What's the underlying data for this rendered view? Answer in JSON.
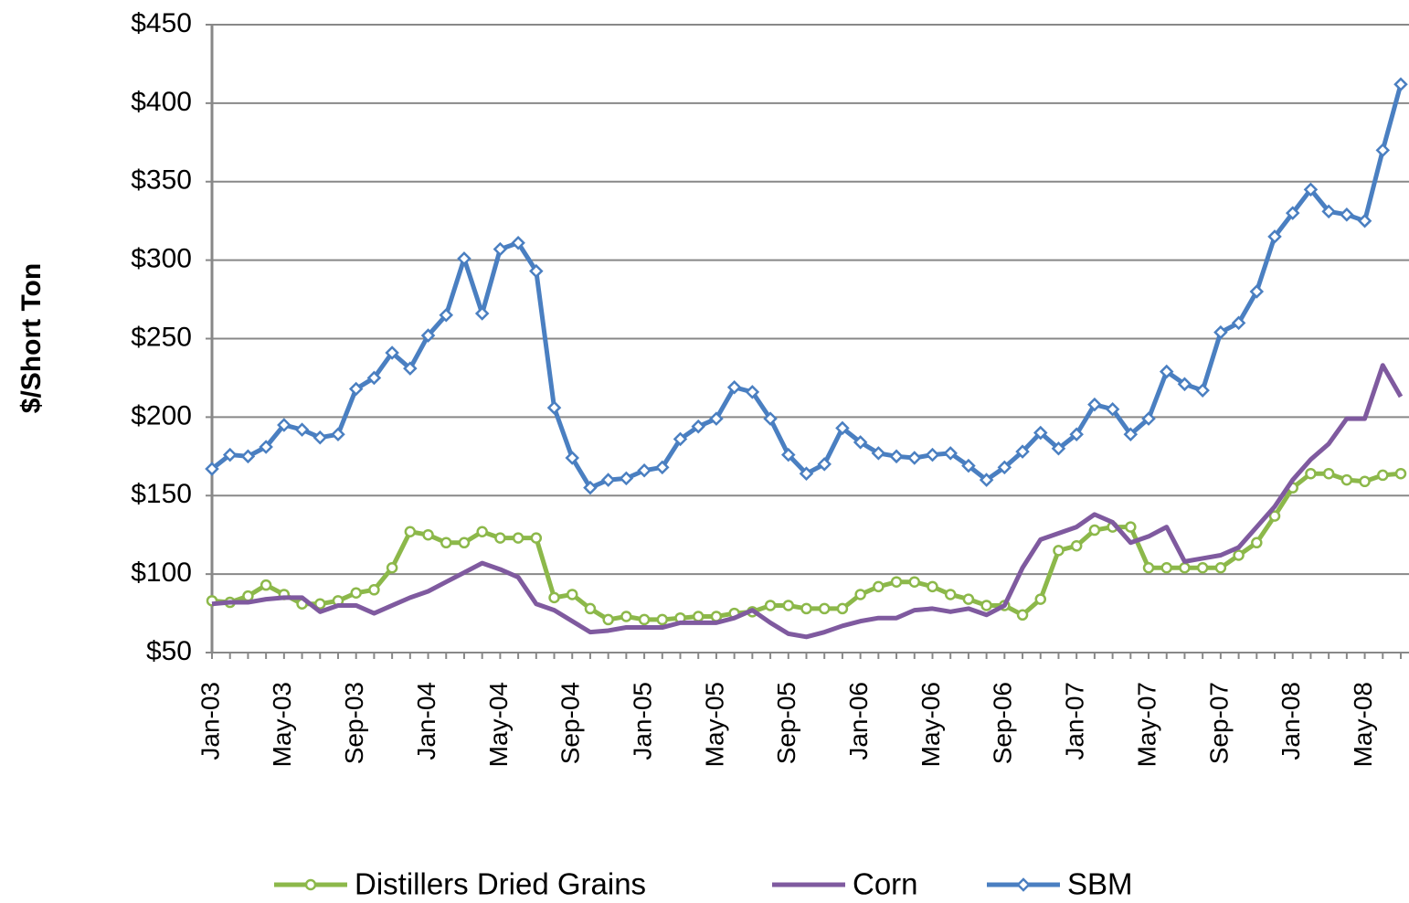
{
  "chart_data": {
    "type": "line",
    "y_axis_label": "$/Short Ton",
    "categories": [
      "Jan-03",
      null,
      null,
      null,
      "May-03",
      null,
      null,
      null,
      "Sep-03",
      null,
      null,
      null,
      "Jan-04",
      null,
      null,
      null,
      "May-04",
      null,
      null,
      null,
      "Sep-04",
      null,
      null,
      null,
      "Jan-05",
      null,
      null,
      null,
      "May-05",
      null,
      null,
      null,
      "Sep-05",
      null,
      null,
      null,
      "Jan-06",
      null,
      null,
      null,
      "May-06",
      null,
      null,
      null,
      "Sep-06",
      null,
      null,
      null,
      "Jan-07",
      null,
      null,
      null,
      "May-07",
      null,
      null,
      null,
      "Sep-07",
      null,
      null,
      null,
      "Jan-08",
      null,
      null,
      null,
      "May-08",
      null,
      null
    ],
    "series": [
      {
        "name": "Distillers Dried Grains",
        "color": "#8cb84a",
        "marker": "circle",
        "values": [
          83,
          82,
          86,
          93,
          87,
          81,
          81,
          83,
          88,
          90,
          104,
          127,
          125,
          120,
          120,
          127,
          123,
          123,
          123,
          85,
          87,
          78,
          71,
          73,
          71,
          71,
          72,
          73,
          73,
          75,
          76,
          80,
          80,
          78,
          78,
          78,
          87,
          92,
          95,
          95,
          92,
          87,
          84,
          80,
          80,
          74,
          84,
          115,
          118,
          128,
          130,
          130,
          104,
          104,
          104,
          104,
          104,
          112,
          120,
          137,
          155,
          164,
          164,
          160,
          159,
          163,
          164
        ]
      },
      {
        "name": "Corn",
        "color": "#7f5a9f",
        "marker": "none",
        "values": [
          81,
          82,
          82,
          84,
          85,
          85,
          76,
          80,
          80,
          75,
          80,
          85,
          89,
          95,
          101,
          107,
          103,
          98,
          81,
          77,
          70,
          63,
          64,
          66,
          66,
          66,
          69,
          69,
          69,
          72,
          77,
          69,
          62,
          60,
          63,
          67,
          70,
          72,
          72,
          77,
          78,
          76,
          78,
          74,
          80,
          104,
          122,
          126,
          130,
          138,
          133,
          120,
          124,
          130,
          108,
          110,
          112,
          117,
          130,
          143,
          160,
          173,
          183,
          199,
          199,
          233,
          213
        ]
      },
      {
        "name": "SBM",
        "color": "#4a7fc1",
        "marker": "diamond",
        "values": [
          167,
          176,
          175,
          181,
          195,
          192,
          187,
          189,
          218,
          225,
          241,
          231,
          252,
          265,
          301,
          266,
          307,
          311,
          293,
          206,
          174,
          155,
          160,
          161,
          166,
          168,
          186,
          194,
          199,
          219,
          216,
          199,
          176,
          164,
          170,
          193,
          184,
          177,
          175,
          174,
          176,
          177,
          169,
          160,
          168,
          178,
          190,
          180,
          189,
          208,
          205,
          189,
          199,
          229,
          221,
          217,
          254,
          260,
          280,
          315,
          330,
          345,
          331,
          329,
          325,
          370,
          412
        ]
      }
    ],
    "ylim": [
      50,
      450
    ],
    "yticks": [
      {
        "value": 50,
        "label": "$50"
      },
      {
        "value": 100,
        "label": "$100"
      },
      {
        "value": 150,
        "label": "$150"
      },
      {
        "value": 200,
        "label": "$200"
      },
      {
        "value": 250,
        "label": "$250"
      },
      {
        "value": 300,
        "label": "$300"
      },
      {
        "value": 350,
        "label": "$350"
      },
      {
        "value": 400,
        "label": "$400"
      },
      {
        "value": 450,
        "label": "$450"
      }
    ],
    "grid": true,
    "legend": "bottom"
  }
}
